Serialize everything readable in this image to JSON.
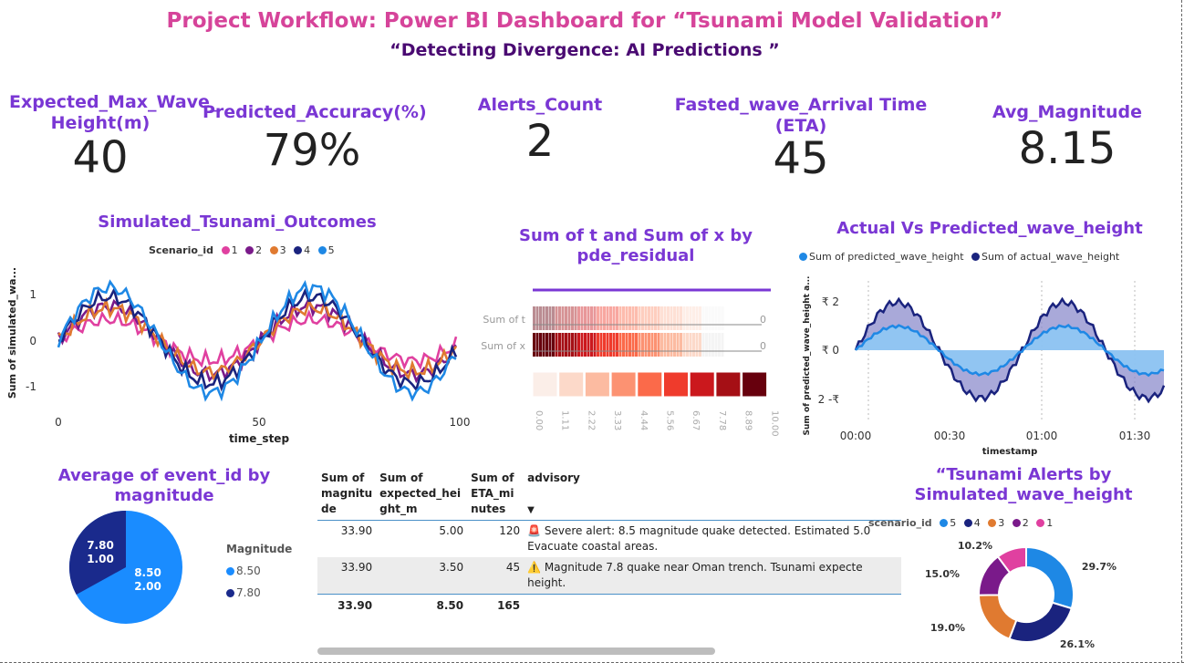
{
  "header": {
    "title": "Project Workflow: Power BI Dashboard for “Tsunami Model Validation”",
    "subtitle": "“Detecting Divergence: AI Predictions ”"
  },
  "kpis": [
    {
      "label": "Expected_Max_Wave_ Height(m)",
      "value": "40"
    },
    {
      "label": "Predicted_Accuracy(%)",
      "value": "79%"
    },
    {
      "label": "Alerts_Count",
      "value": "2"
    },
    {
      "label": "Fasted_wave_Arrival Time (ETA)",
      "value": "45"
    },
    {
      "label": "Avg_Magnitude",
      "value": "8.15"
    }
  ],
  "colors": {
    "s1": "#e040a0",
    "s2": "#7a1a8a",
    "s3": "#e07a30",
    "s4": "#1a237e",
    "s5": "#1e88e5",
    "accent_purple": "#7a37d4",
    "title_pink": "#d6449a"
  },
  "sim_chart": {
    "title": "Simulated_Tsunami_Outcomes",
    "legend_title": "Scenario_id",
    "legend": [
      "1",
      "2",
      "3",
      "4",
      "5"
    ],
    "ylabel": "Sum of simulated_wa...",
    "xlabel": "time_step",
    "xticks": [
      "0",
      "50",
      "100"
    ],
    "yticks": [
      "1",
      "0",
      "-1"
    ]
  },
  "residual_chart": {
    "title": "Sum of t and Sum of x by pde_residual",
    "rows": [
      "Sum of t",
      "Sum of x"
    ],
    "row_end_value": "0",
    "scale_ticks": [
      "0.00",
      "1.11",
      "2.22",
      "3.33",
      "4.44",
      "5.56",
      "6.67",
      "7.78",
      "8.89",
      "10.00"
    ]
  },
  "wave_chart": {
    "title": "Actual Vs Predicted_wave_height",
    "legend": [
      "Sum of predicted_wave_height",
      "Sum of actual_wave_height"
    ],
    "ylabel": "Sum of predicted_wave_height a...",
    "xlabel": "timestamp",
    "xticks": [
      "00:00",
      "00:30",
      "01:00",
      "01:30"
    ],
    "yticks": [
      "₹ 2",
      "₹ 0",
      "2 -₹"
    ]
  },
  "pie_chart": {
    "title": "Average of event_id by magnitude",
    "legend_title": "Magnitude",
    "legend": [
      "8.50",
      "7.80"
    ],
    "slices": [
      {
        "label": "8.50",
        "value": "2.00"
      },
      {
        "label": "7.80",
        "value": "1.00"
      }
    ]
  },
  "table": {
    "headers": [
      "Sum of magnitu de",
      "Sum of expected_hei ght_m",
      "Sum of ETA_mi nutes",
      "advisory"
    ],
    "rows": [
      {
        "mag": "33.90",
        "height": "5.00",
        "eta": "120",
        "icon": "🚨",
        "advisory": "Severe alert: 8.5 magnitude quake detected. Estimated 5.0 Evacuate coastal areas."
      },
      {
        "mag": "33.90",
        "height": "3.50",
        "eta": "45",
        "icon": "⚠️",
        "advisory": "Magnitude 7.8 quake near Oman trench. Tsunami expecte height."
      }
    ],
    "totals": {
      "mag": "33.90",
      "height": "8.50",
      "eta": "165"
    }
  },
  "donut_chart": {
    "title": "“Tsunami Alerts by Simulated_wave_height",
    "legend_title": "scenario_id",
    "legend": [
      "5",
      "4",
      "3",
      "2",
      "1"
    ],
    "slices": [
      {
        "scenario": "5",
        "pct": "29.7%"
      },
      {
        "scenario": "4",
        "pct": "26.1%"
      },
      {
        "scenario": "3",
        "pct": "19.0%"
      },
      {
        "scenario": "2",
        "pct": "15.0%"
      },
      {
        "scenario": "1",
        "pct": "10.2%"
      }
    ]
  }
}
